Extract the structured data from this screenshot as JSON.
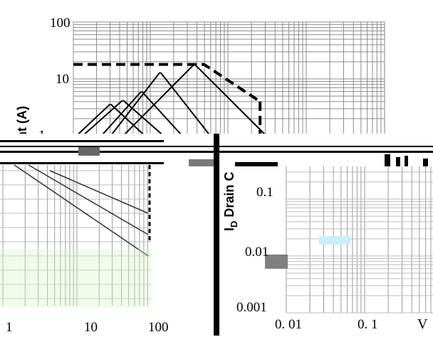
{
  "chart_data": [
    {
      "type": "line",
      "title": "",
      "ylabel": "nt (A)",
      "xlabel": "",
      "yscale": "log",
      "ylim": [
        1,
        100
      ],
      "y_ticks": [
        {
          "value": 100,
          "label": "100"
        },
        {
          "value": 10,
          "label": "10"
        },
        {
          "value": 1,
          "label": "1"
        }
      ],
      "grid": true,
      "series": [
        {
          "style": "dashed",
          "x_frac": [
            0,
            0.205,
            0.365,
            0.42,
            0.6
          ],
          "y": [
            18,
            18,
            18,
            18,
            4
          ]
        }
      ],
      "diagonals": [
        {
          "x1": 0.39,
          "y1": 18,
          "x2": 0.62,
          "y2": 1
        },
        {
          "x1": 0.28,
          "y1": 13,
          "x2": 0.44,
          "y2": 1
        },
        {
          "x1": 0.22,
          "y1": 6,
          "x2": 0.35,
          "y2": 1
        },
        {
          "x1": 0.16,
          "y1": 4.2,
          "x2": 0.29,
          "y2": 1
        },
        {
          "x1": 0.12,
          "y1": 3.6,
          "x2": 0.23,
          "y2": 1
        }
      ]
    },
    {
      "type": "line",
      "title": "",
      "xlabel": "",
      "xscale": "log",
      "x_ticks": [
        {
          "value": 1,
          "label": "1"
        },
        {
          "value": 10,
          "label": "10"
        },
        {
          "value": 100,
          "label": "100"
        }
      ],
      "grid": true
    },
    {
      "type": "line",
      "title": "",
      "ylabel": "ID Drain C",
      "ylabel_main": "I",
      "ylabel_sub": "D",
      "ylabel_rest": " Drain C",
      "xlabel": "V",
      "yscale": "log",
      "xscale": "log",
      "y_ticks": [
        {
          "value": 0.1,
          "label": "0.1"
        },
        {
          "value": 0.01,
          "label": "0.01"
        },
        {
          "value": 0.001,
          "label": "0.001"
        }
      ],
      "x_ticks": [
        {
          "value": 0.01,
          "label": "0. 01"
        },
        {
          "value": 0.1,
          "label": "0. 1"
        }
      ],
      "grid": true
    }
  ]
}
